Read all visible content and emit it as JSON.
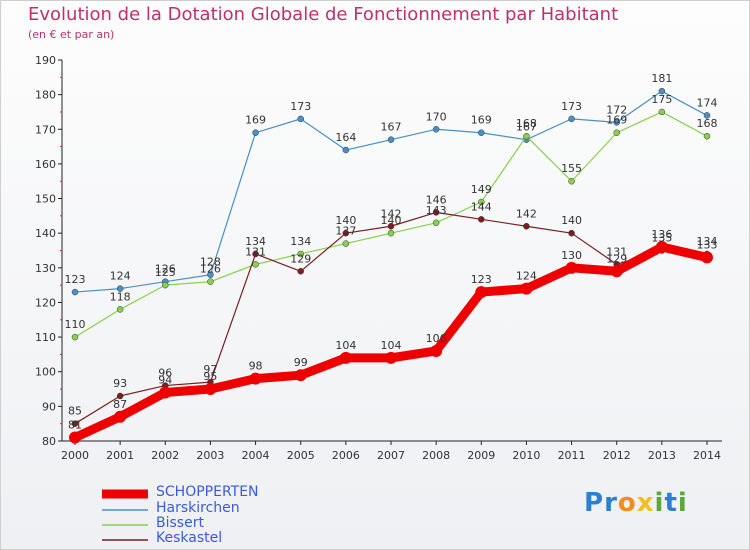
{
  "title": "Evolution de la Dotation Globale de Fonctionnement par Habitant",
  "subtitle": "(en € et par an)",
  "logo": {
    "text": "Proxiti",
    "letters": [
      "P",
      "r",
      "o",
      "x",
      "i",
      "t",
      "i"
    ],
    "colors": [
      "#2f7fd1",
      "#2f7fd1",
      "#f28c1e",
      "#f2c01e",
      "#5aa83a",
      "#2f7fd1",
      "#5aa83a"
    ]
  },
  "chart_data": {
    "type": "line",
    "title": "Evolution de la Dotation Globale de Fonctionnement par Habitant",
    "ylabel": "(en € et par an)",
    "xlabel": "",
    "ylim": [
      80,
      190
    ],
    "yticks": [
      "80",
      "90",
      "100",
      "110",
      "120",
      "130",
      "140",
      "150",
      "160",
      "170",
      "180",
      "190"
    ],
    "categories": [
      "2000",
      "2001",
      "2002",
      "2003",
      "2004",
      "2005",
      "2006",
      "2007",
      "2008",
      "2009",
      "2010",
      "2011",
      "2012",
      "2013",
      "2014"
    ],
    "series": [
      {
        "name": "SCHOPPERTEN",
        "color": "#ee0000",
        "values": [
          81,
          87,
          94,
          95,
          98,
          99,
          104,
          104,
          106,
          123,
          124,
          130,
          129,
          136,
          133
        ],
        "labels": [
          "81",
          "87",
          "94",
          "95",
          "98",
          "99",
          "104",
          "104",
          "106",
          "123",
          "124",
          "130",
          "129",
          "136",
          "133"
        ]
      },
      {
        "name": "Harskirchen",
        "color": "#4a90c8",
        "values": [
          123,
          124,
          126,
          128,
          169,
          173,
          164,
          167,
          170,
          169,
          167,
          173,
          172,
          181,
          174
        ],
        "labels": [
          "123",
          "124",
          "126",
          "128",
          "169",
          "173",
          "164",
          "167",
          "170",
          "169",
          "167",
          "173",
          "172",
          "181",
          "174"
        ]
      },
      {
        "name": "Bissert",
        "color": "#88d04a",
        "values": [
          110,
          118,
          125,
          126,
          131,
          134,
          137,
          140,
          143,
          149,
          168,
          155,
          169,
          175,
          168
        ],
        "labels": [
          "110",
          "118",
          "125",
          "126",
          "131",
          "134",
          "137",
          "140",
          "143",
          "149",
          "168",
          "155",
          "169",
          "175",
          "168"
        ]
      },
      {
        "name": "Keskastel",
        "color": "#7a1f1f",
        "values": [
          85,
          93,
          96,
          97,
          134,
          129,
          140,
          142,
          146,
          144,
          142,
          140,
          131,
          135,
          134
        ],
        "labels": [
          "85",
          "93",
          "96",
          "97",
          "134",
          "129",
          "140",
          "142",
          "146",
          "144",
          "142",
          "140",
          "131",
          "135",
          "134"
        ]
      }
    ],
    "legend_position": "bottom-left",
    "grid": false
  }
}
